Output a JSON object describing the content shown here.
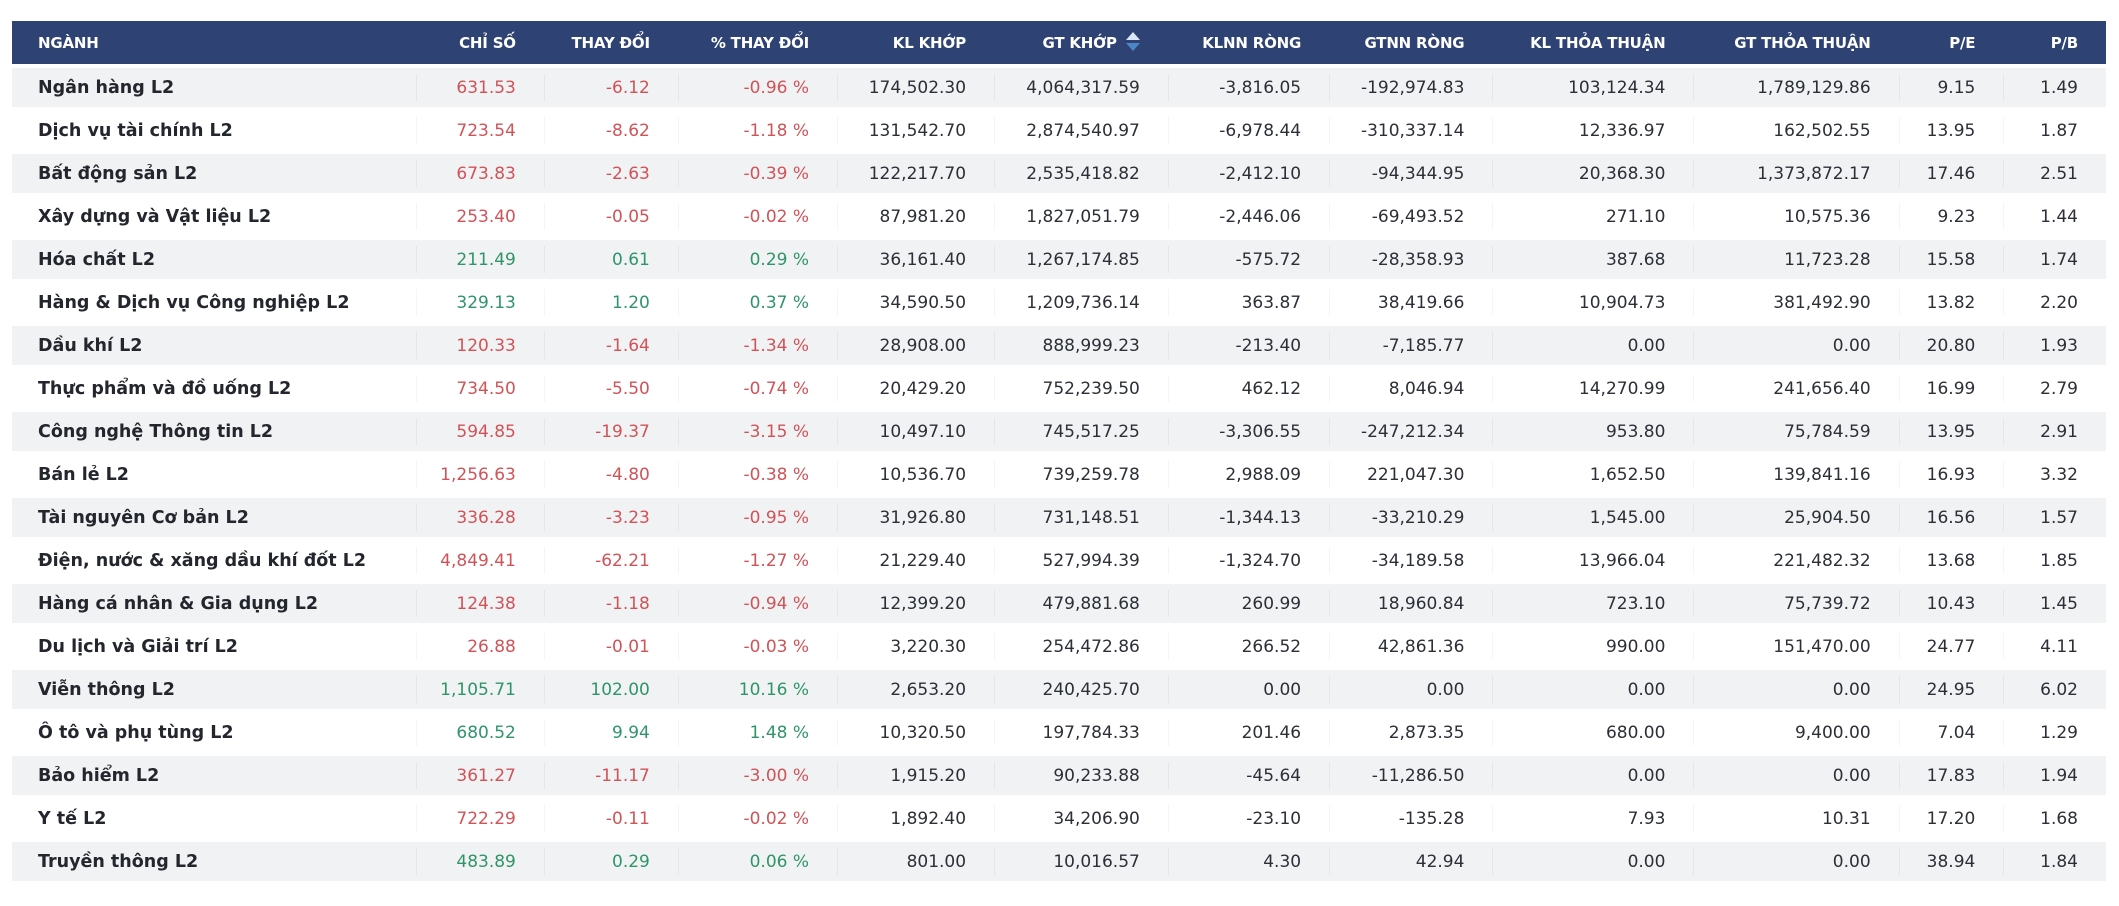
{
  "colors": {
    "header_bg": "#2e4274",
    "row_alt_bg": "#f1f2f4",
    "row_bg": "#ffffff",
    "positive": "#2f9568",
    "negative": "#d05358",
    "sort_arrow_active": "#4c86c6",
    "sort_arrow_inactive": "#dbe7f6"
  },
  "table": {
    "sorted_column": "GT KHỚP",
    "columns": [
      {
        "key": "nganh",
        "label": "NGÀNH"
      },
      {
        "key": "chi_so",
        "label": "CHỈ SỐ"
      },
      {
        "key": "thay_doi",
        "label": "THAY ĐỔI"
      },
      {
        "key": "pct_thay_doi",
        "label": "% THAY ĐỔI"
      },
      {
        "key": "kl_khop",
        "label": "KL KHỚP"
      },
      {
        "key": "gt_khop",
        "label": "GT KHỚP"
      },
      {
        "key": "klnn_rong",
        "label": "KLNN RÒNG"
      },
      {
        "key": "gtnn_rong",
        "label": "GTNN RÒNG"
      },
      {
        "key": "kl_thoa_thuan",
        "label": "KL THỎA THUẬN"
      },
      {
        "key": "gt_thoa_thuan",
        "label": "GT THỎA THUẬN"
      },
      {
        "key": "pe",
        "label": "P/E"
      },
      {
        "key": "pb",
        "label": "P/B"
      }
    ],
    "rows": [
      {
        "nganh": "Ngân hàng L2",
        "chi_so": "631.53",
        "thay_doi": "-6.12",
        "pct_thay_doi": "-0.96 %",
        "kl_khop": "174,502.30",
        "gt_khop": "4,064,317.59",
        "klnn_rong": "-3,816.05",
        "gtnn_rong": "-192,974.83",
        "kl_thoa_thuan": "103,124.34",
        "gt_thoa_thuan": "1,789,129.86",
        "pe": "9.15",
        "pb": "1.49",
        "trend": "down"
      },
      {
        "nganh": "Dịch vụ tài chính L2",
        "chi_so": "723.54",
        "thay_doi": "-8.62",
        "pct_thay_doi": "-1.18 %",
        "kl_khop": "131,542.70",
        "gt_khop": "2,874,540.97",
        "klnn_rong": "-6,978.44",
        "gtnn_rong": "-310,337.14",
        "kl_thoa_thuan": "12,336.97",
        "gt_thoa_thuan": "162,502.55",
        "pe": "13.95",
        "pb": "1.87",
        "trend": "down"
      },
      {
        "nganh": "Bất động sản L2",
        "chi_so": "673.83",
        "thay_doi": "-2.63",
        "pct_thay_doi": "-0.39 %",
        "kl_khop": "122,217.70",
        "gt_khop": "2,535,418.82",
        "klnn_rong": "-2,412.10",
        "gtnn_rong": "-94,344.95",
        "kl_thoa_thuan": "20,368.30",
        "gt_thoa_thuan": "1,373,872.17",
        "pe": "17.46",
        "pb": "2.51",
        "trend": "down"
      },
      {
        "nganh": "Xây dựng và Vật liệu L2",
        "chi_so": "253.40",
        "thay_doi": "-0.05",
        "pct_thay_doi": "-0.02 %",
        "kl_khop": "87,981.20",
        "gt_khop": "1,827,051.79",
        "klnn_rong": "-2,446.06",
        "gtnn_rong": "-69,493.52",
        "kl_thoa_thuan": "271.10",
        "gt_thoa_thuan": "10,575.36",
        "pe": "9.23",
        "pb": "1.44",
        "trend": "down"
      },
      {
        "nganh": "Hóa chất L2",
        "chi_so": "211.49",
        "thay_doi": "0.61",
        "pct_thay_doi": "0.29 %",
        "kl_khop": "36,161.40",
        "gt_khop": "1,267,174.85",
        "klnn_rong": "-575.72",
        "gtnn_rong": "-28,358.93",
        "kl_thoa_thuan": "387.68",
        "gt_thoa_thuan": "11,723.28",
        "pe": "15.58",
        "pb": "1.74",
        "trend": "up"
      },
      {
        "nganh": "Hàng & Dịch vụ Công nghiệp L2",
        "chi_so": "329.13",
        "thay_doi": "1.20",
        "pct_thay_doi": "0.37 %",
        "kl_khop": "34,590.50",
        "gt_khop": "1,209,736.14",
        "klnn_rong": "363.87",
        "gtnn_rong": "38,419.66",
        "kl_thoa_thuan": "10,904.73",
        "gt_thoa_thuan": "381,492.90",
        "pe": "13.82",
        "pb": "2.20",
        "trend": "up"
      },
      {
        "nganh": "Dầu khí L2",
        "chi_so": "120.33",
        "thay_doi": "-1.64",
        "pct_thay_doi": "-1.34 %",
        "kl_khop": "28,908.00",
        "gt_khop": "888,999.23",
        "klnn_rong": "-213.40",
        "gtnn_rong": "-7,185.77",
        "kl_thoa_thuan": "0.00",
        "gt_thoa_thuan": "0.00",
        "pe": "20.80",
        "pb": "1.93",
        "trend": "down"
      },
      {
        "nganh": "Thực phẩm và đồ uống L2",
        "chi_so": "734.50",
        "thay_doi": "-5.50",
        "pct_thay_doi": "-0.74 %",
        "kl_khop": "20,429.20",
        "gt_khop": "752,239.50",
        "klnn_rong": "462.12",
        "gtnn_rong": "8,046.94",
        "kl_thoa_thuan": "14,270.99",
        "gt_thoa_thuan": "241,656.40",
        "pe": "16.99",
        "pb": "2.79",
        "trend": "down"
      },
      {
        "nganh": "Công nghệ Thông tin L2",
        "chi_so": "594.85",
        "thay_doi": "-19.37",
        "pct_thay_doi": "-3.15 %",
        "kl_khop": "10,497.10",
        "gt_khop": "745,517.25",
        "klnn_rong": "-3,306.55",
        "gtnn_rong": "-247,212.34",
        "kl_thoa_thuan": "953.80",
        "gt_thoa_thuan": "75,784.59",
        "pe": "13.95",
        "pb": "2.91",
        "trend": "down"
      },
      {
        "nganh": "Bán lẻ L2",
        "chi_so": "1,256.63",
        "thay_doi": "-4.80",
        "pct_thay_doi": "-0.38 %",
        "kl_khop": "10,536.70",
        "gt_khop": "739,259.78",
        "klnn_rong": "2,988.09",
        "gtnn_rong": "221,047.30",
        "kl_thoa_thuan": "1,652.50",
        "gt_thoa_thuan": "139,841.16",
        "pe": "16.93",
        "pb": "3.32",
        "trend": "down"
      },
      {
        "nganh": "Tài nguyên Cơ bản L2",
        "chi_so": "336.28",
        "thay_doi": "-3.23",
        "pct_thay_doi": "-0.95 %",
        "kl_khop": "31,926.80",
        "gt_khop": "731,148.51",
        "klnn_rong": "-1,344.13",
        "gtnn_rong": "-33,210.29",
        "kl_thoa_thuan": "1,545.00",
        "gt_thoa_thuan": "25,904.50",
        "pe": "16.56",
        "pb": "1.57",
        "trend": "down"
      },
      {
        "nganh": "Điện, nước & xăng dầu khí đốt L2",
        "chi_so": "4,849.41",
        "thay_doi": "-62.21",
        "pct_thay_doi": "-1.27 %",
        "kl_khop": "21,229.40",
        "gt_khop": "527,994.39",
        "klnn_rong": "-1,324.70",
        "gtnn_rong": "-34,189.58",
        "kl_thoa_thuan": "13,966.04",
        "gt_thoa_thuan": "221,482.32",
        "pe": "13.68",
        "pb": "1.85",
        "trend": "down"
      },
      {
        "nganh": "Hàng cá nhân & Gia dụng L2",
        "chi_so": "124.38",
        "thay_doi": "-1.18",
        "pct_thay_doi": "-0.94 %",
        "kl_khop": "12,399.20",
        "gt_khop": "479,881.68",
        "klnn_rong": "260.99",
        "gtnn_rong": "18,960.84",
        "kl_thoa_thuan": "723.10",
        "gt_thoa_thuan": "75,739.72",
        "pe": "10.43",
        "pb": "1.45",
        "trend": "down"
      },
      {
        "nganh": "Du lịch và Giải trí L2",
        "chi_so": "26.88",
        "thay_doi": "-0.01",
        "pct_thay_doi": "-0.03 %",
        "kl_khop": "3,220.30",
        "gt_khop": "254,472.86",
        "klnn_rong": "266.52",
        "gtnn_rong": "42,861.36",
        "kl_thoa_thuan": "990.00",
        "gt_thoa_thuan": "151,470.00",
        "pe": "24.77",
        "pb": "4.11",
        "trend": "down"
      },
      {
        "nganh": "Viễn thông L2",
        "chi_so": "1,105.71",
        "thay_doi": "102.00",
        "pct_thay_doi": "10.16 %",
        "kl_khop": "2,653.20",
        "gt_khop": "240,425.70",
        "klnn_rong": "0.00",
        "gtnn_rong": "0.00",
        "kl_thoa_thuan": "0.00",
        "gt_thoa_thuan": "0.00",
        "pe": "24.95",
        "pb": "6.02",
        "trend": "up"
      },
      {
        "nganh": "Ô tô và phụ tùng L2",
        "chi_so": "680.52",
        "thay_doi": "9.94",
        "pct_thay_doi": "1.48 %",
        "kl_khop": "10,320.50",
        "gt_khop": "197,784.33",
        "klnn_rong": "201.46",
        "gtnn_rong": "2,873.35",
        "kl_thoa_thuan": "680.00",
        "gt_thoa_thuan": "9,400.00",
        "pe": "7.04",
        "pb": "1.29",
        "trend": "up"
      },
      {
        "nganh": "Bảo hiểm L2",
        "chi_so": "361.27",
        "thay_doi": "-11.17",
        "pct_thay_doi": "-3.00 %",
        "kl_khop": "1,915.20",
        "gt_khop": "90,233.88",
        "klnn_rong": "-45.64",
        "gtnn_rong": "-11,286.50",
        "kl_thoa_thuan": "0.00",
        "gt_thoa_thuan": "0.00",
        "pe": "17.83",
        "pb": "1.94",
        "trend": "down"
      },
      {
        "nganh": "Y tế L2",
        "chi_so": "722.29",
        "thay_doi": "-0.11",
        "pct_thay_doi": "-0.02 %",
        "kl_khop": "1,892.40",
        "gt_khop": "34,206.90",
        "klnn_rong": "-23.10",
        "gtnn_rong": "-135.28",
        "kl_thoa_thuan": "7.93",
        "gt_thoa_thuan": "10.31",
        "pe": "17.20",
        "pb": "1.68",
        "trend": "down"
      },
      {
        "nganh": "Truyền thông L2",
        "chi_so": "483.89",
        "thay_doi": "0.29",
        "pct_thay_doi": "0.06 %",
        "kl_khop": "801.00",
        "gt_khop": "10,016.57",
        "klnn_rong": "4.30",
        "gtnn_rong": "42.94",
        "kl_thoa_thuan": "0.00",
        "gt_thoa_thuan": "0.00",
        "pe": "38.94",
        "pb": "1.84",
        "trend": "up"
      }
    ]
  }
}
